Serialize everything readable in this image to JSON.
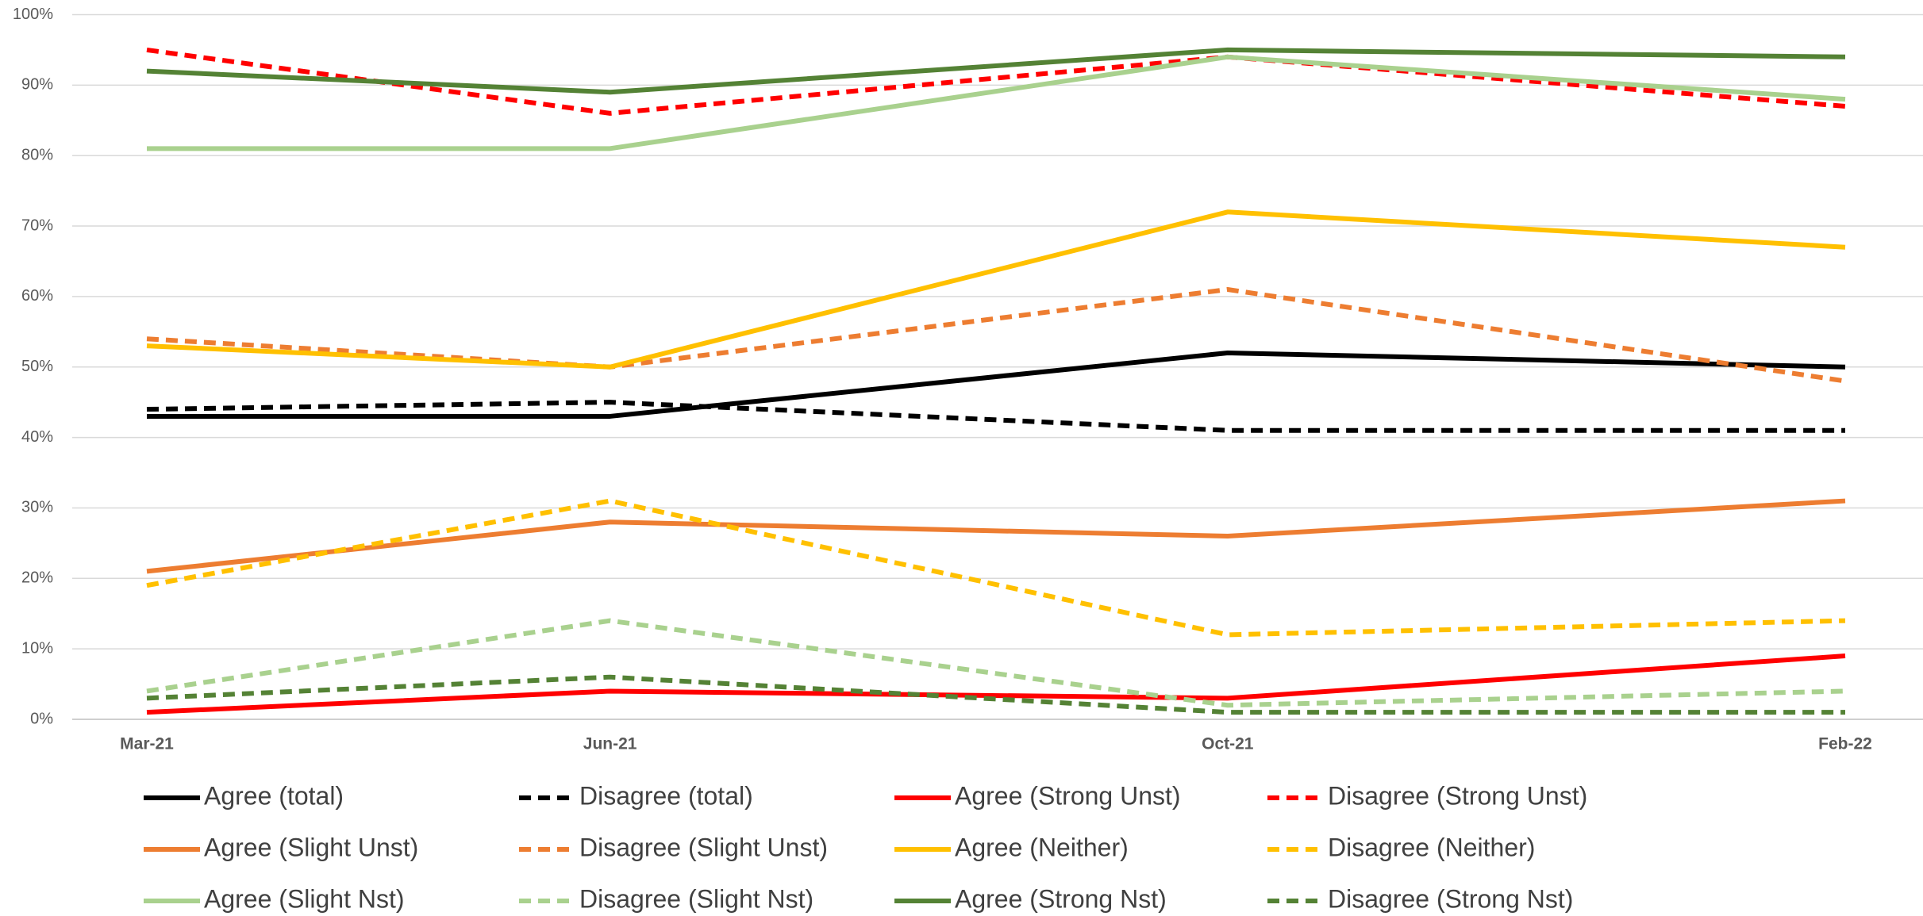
{
  "chart_data": {
    "type": "line",
    "x": [
      "Mar-21",
      "Jun-21",
      "Oct-21",
      "Feb-22"
    ],
    "ylim": [
      0,
      100
    ],
    "yticks": [
      {
        "value": 0,
        "label": "0%"
      },
      {
        "value": 10,
        "label": "10%"
      },
      {
        "value": 20,
        "label": "20%"
      },
      {
        "value": 30,
        "label": "30%"
      },
      {
        "value": 40,
        "label": "40%"
      },
      {
        "value": 50,
        "label": "50%"
      },
      {
        "value": 60,
        "label": "60%"
      },
      {
        "value": 70,
        "label": "70%"
      },
      {
        "value": 80,
        "label": "80%"
      },
      {
        "value": 90,
        "label": "90%"
      },
      {
        "value": 100,
        "label": "100%"
      }
    ],
    "grid": true,
    "legend": "bottom",
    "series": [
      {
        "name": "Agree (total)",
        "color": "#000000",
        "dashed": false,
        "values": [
          43,
          43,
          52,
          50
        ]
      },
      {
        "name": "Disagree (total)",
        "color": "#000000",
        "dashed": true,
        "values": [
          44,
          45,
          41,
          41
        ]
      },
      {
        "name": "Agree (Strong Unst)",
        "color": "#ff0000",
        "dashed": false,
        "values": [
          1,
          4,
          3,
          9
        ]
      },
      {
        "name": "Disagree (Strong Unst)",
        "color": "#ff0000",
        "dashed": true,
        "values": [
          95,
          86,
          94,
          87
        ]
      },
      {
        "name": "Agree (Slight Unst)",
        "color": "#ed7d31",
        "dashed": false,
        "values": [
          21,
          28,
          26,
          31
        ]
      },
      {
        "name": "Disagree (Slight Unst)",
        "color": "#ed7d31",
        "dashed": true,
        "values": [
          54,
          50,
          61,
          48
        ]
      },
      {
        "name": "Agree (Neither)",
        "color": "#ffc000",
        "dashed": false,
        "values": [
          53,
          50,
          72,
          67
        ]
      },
      {
        "name": "Disagree (Neither)",
        "color": "#ffc000",
        "dashed": true,
        "values": [
          19,
          31,
          12,
          14
        ]
      },
      {
        "name": "Agree (Slight Nst)",
        "color": "#a9d18e",
        "dashed": false,
        "values": [
          81,
          81,
          94,
          88
        ]
      },
      {
        "name": "Disagree (Slight Nst)",
        "color": "#a9d18e",
        "dashed": true,
        "values": [
          4,
          14,
          2,
          4
        ]
      },
      {
        "name": "Agree (Strong Nst)",
        "color": "#548235",
        "dashed": false,
        "values": [
          92,
          89,
          95,
          94
        ]
      },
      {
        "name": "Disagree (Strong Nst)",
        "color": "#548235",
        "dashed": true,
        "values": [
          3,
          6,
          1,
          1
        ]
      }
    ]
  }
}
